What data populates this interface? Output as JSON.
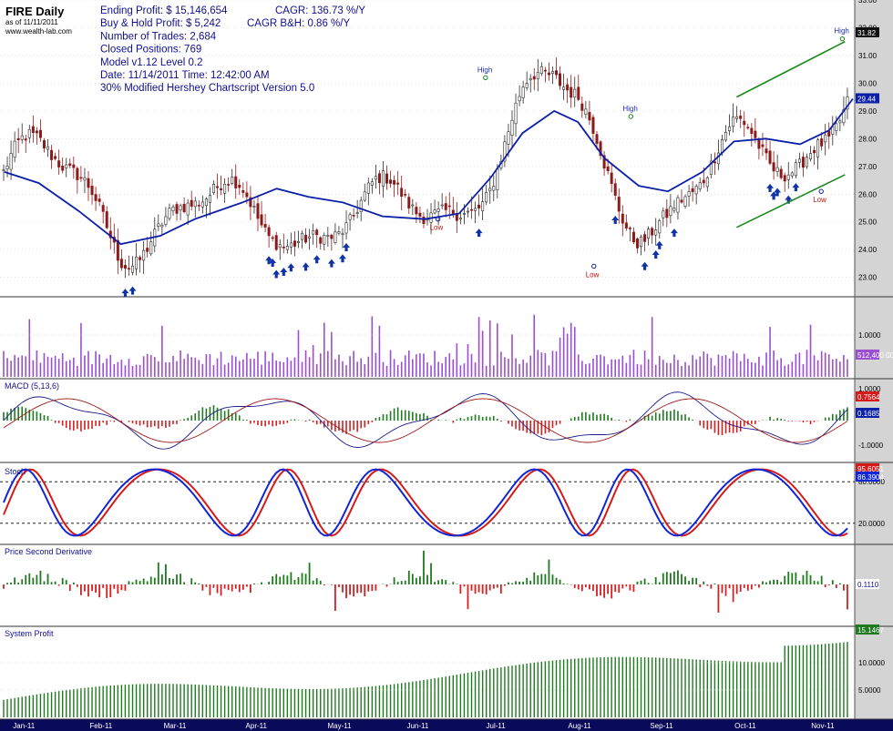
{
  "header": {
    "symbol": "FIRE Daily",
    "as_of": "as of 11/11/2011",
    "website": "www.wealth-lab.com",
    "stats_left": [
      "Ending Profit: $ 15,146,654",
      "Buy & Hold Profit: $ 5,242",
      "Number of Trades:  2,684",
      "Closed Positions:  769",
      "Model v1.12  Level 0.2",
      "Date: 11/14/2011   Time: 12:42:00 AM",
      "30% Modified Hershey Chartscript Version 5.0"
    ],
    "stats_right": [
      "CAGR: 136.73 %/Y",
      "CAGR B&H: 0.86 %/Y"
    ]
  },
  "colors": {
    "up_bar": "#2b2b2b",
    "down_bar": "#8b1a1a",
    "ma_line": "#0b1fa8",
    "channel": "#1a8a1a",
    "arrow": "#1034a6",
    "volume": "#9a4fd1",
    "macd_pos": "#1e7a1e",
    "macd_neg": "#d62020",
    "stoch_k": "#1026d6",
    "stoch_d": "#d61a1a",
    "profit": "#1e7a1e",
    "axis_bg": "#d4d4d4",
    "bottom_axis_bg": "#0a0a5a"
  },
  "chart_data": [
    {
      "type": "candlestick",
      "panel": "price",
      "ylim": [
        22.3,
        33.0
      ],
      "y_ticks": [
        "23.00",
        "24.00",
        "25.00",
        "26.00",
        "27.00",
        "28.00",
        "29.00",
        "30.00",
        "31.00",
        "32.00",
        "33.00"
      ],
      "last_price": "31.82",
      "ma_last": "29.44",
      "annotations": [
        {
          "text": "High",
          "date": "2011-06-28",
          "price": 30.2
        },
        {
          "text": "Low",
          "date": "2011-06-10",
          "price": 25.1
        },
        {
          "text": "High",
          "date": "2011-08-22",
          "price": 28.8
        },
        {
          "text": "Low",
          "date": "2011-08-08",
          "price": 23.4
        },
        {
          "text": "High",
          "date": "2011-11-10",
          "price": 31.6
        },
        {
          "text": "Low",
          "date": "2011-11-02",
          "price": 26.1
        }
      ],
      "moving_average": [
        {
          "date": "2010-12-28",
          "value": 26.8
        },
        {
          "date": "2011-01-10",
          "value": 26.4
        },
        {
          "date": "2011-01-25",
          "value": 25.4
        },
        {
          "date": "2011-02-10",
          "value": 24.2
        },
        {
          "date": "2011-02-25",
          "value": 24.5
        },
        {
          "date": "2011-03-10",
          "value": 25.1
        },
        {
          "date": "2011-03-28",
          "value": 25.7
        },
        {
          "date": "2011-04-10",
          "value": 26.2
        },
        {
          "date": "2011-04-22",
          "value": 25.9
        },
        {
          "date": "2011-05-05",
          "value": 25.7
        },
        {
          "date": "2011-05-20",
          "value": 25.2
        },
        {
          "date": "2011-06-05",
          "value": 25.1
        },
        {
          "date": "2011-06-18",
          "value": 25.3
        },
        {
          "date": "2011-06-30",
          "value": 26.6
        },
        {
          "date": "2011-07-12",
          "value": 28.2
        },
        {
          "date": "2011-07-24",
          "value": 29.0
        },
        {
          "date": "2011-08-02",
          "value": 28.6
        },
        {
          "date": "2011-08-12",
          "value": 27.3
        },
        {
          "date": "2011-08-25",
          "value": 26.3
        },
        {
          "date": "2011-09-05",
          "value": 26.1
        },
        {
          "date": "2011-09-18",
          "value": 26.8
        },
        {
          "date": "2011-09-30",
          "value": 27.9
        },
        {
          "date": "2011-10-12",
          "value": 28.0
        },
        {
          "date": "2011-10-25",
          "value": 27.8
        },
        {
          "date": "2011-11-05",
          "value": 28.3
        },
        {
          "date": "2011-11-14",
          "value": 29.44
        }
      ],
      "channel_lines": [
        {
          "from": {
            "date": "2011-10-01",
            "price": 29.5
          },
          "to": {
            "date": "2011-11-11",
            "price": 31.5
          }
        },
        {
          "from": {
            "date": "2011-10-01",
            "price": 24.8
          },
          "to": {
            "date": "2011-11-11",
            "price": 26.7
          }
        }
      ]
    },
    {
      "type": "bar",
      "panel": "volume",
      "y_ticks": [
        "1.0000"
      ],
      "last_value": "512,400.00"
    },
    {
      "type": "bar",
      "panel": "macd",
      "title": "MACD (5,13,6)",
      "y_ticks": [
        "1.0000",
        "-1.0000"
      ],
      "last_values": [
        "0.7564",
        "0.1685"
      ]
    },
    {
      "type": "line",
      "panel": "stoch",
      "title": "Stoch",
      "y_ticks": [
        "80.0000",
        "20.0000"
      ],
      "last_values": [
        "95.6051",
        "86.3904"
      ]
    },
    {
      "type": "bar",
      "panel": "second_derivative",
      "title": "Price Second Derivative",
      "last_value": "0.1110"
    },
    {
      "type": "bar",
      "panel": "system_profit",
      "title": "System Profit",
      "y_ticks": [
        "10.0000",
        "5.0000"
      ],
      "last_value": "15.1467"
    }
  ],
  "x_axis": {
    "months": [
      "Jan-11",
      "Feb-11",
      "Mar-11",
      "Apr-11",
      "May-11",
      "Jun-11",
      "Jul-11",
      "Aug-11",
      "Sep-11",
      "Oct-11",
      "Nov-11"
    ]
  }
}
